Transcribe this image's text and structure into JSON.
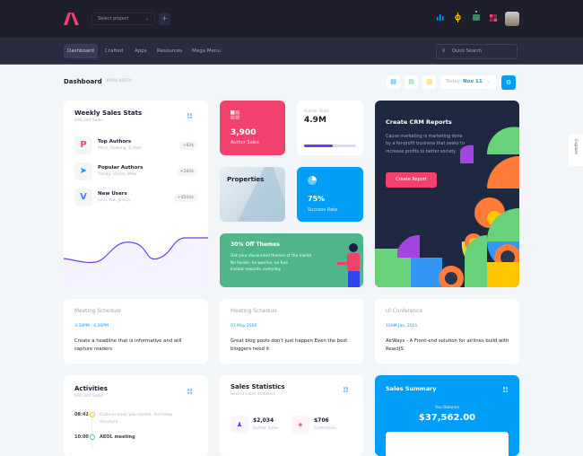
{
  "header": {
    "project_select": "Select project",
    "add": "+"
  },
  "nav": {
    "items": [
      "Dashboard",
      "Crafted",
      "Apps",
      "Resources",
      "Mega Menu"
    ],
    "search_placeholder": "Quick Search"
  },
  "toolbar": {
    "title": "Dashboard",
    "id": "#XRS-45670",
    "date_label": "Today:",
    "date_value": "Nov 11"
  },
  "weekly": {
    "title": "Weekly Sales Stats",
    "sub": "890,344 Sales",
    "items": [
      {
        "title": "Top Authors",
        "names": "Mark, Rowling, Esther",
        "badge": "+82$"
      },
      {
        "title": "Popular Authors",
        "names": "Randy, Steve, Mike",
        "badge": "+280$"
      },
      {
        "title": "New Users",
        "names": "John, Pat, Jimmy",
        "badge": "+4500$"
      }
    ]
  },
  "author_sales": {
    "value": "3,900",
    "label": "Author Sales"
  },
  "author_stats": {
    "label": "Author Stats",
    "value": "4.9M",
    "progress": 0.55
  },
  "properties": {
    "title": "Properties"
  },
  "success": {
    "value": "75%",
    "label": "Success Rate"
  },
  "themes": {
    "title": "30% Off Themes",
    "lines": [
      "Get your discounted themes of the month",
      "No hassle, no worries, no fuss",
      "Instant rewards, everyday"
    ]
  },
  "crm": {
    "title": "Create CRM Reports",
    "text": "Cause marketing is marketing done by a for-profit business that seeks to increase profits to better society",
    "button": "Create Report"
  },
  "explore": "Explore",
  "events": [
    {
      "title": "Meeting Schedule",
      "time": "3:30PM - 4:20PM",
      "text": "Create a headline that is informative and will capture readers"
    },
    {
      "title": "Meeting Schedule",
      "time": "03 May 2020",
      "text": "Great blog posts don't just happen Even the best bloggers need it"
    },
    {
      "title": "UI Conference",
      "time": "10AM Jan, 2021",
      "text": "AirWays - A Front-end solution for airlines build with ReactJS"
    }
  ],
  "activities": {
    "title": "Activities",
    "sub": "890,344 Sales",
    "items": [
      {
        "time": "08:42",
        "text": "Outlines keep you honest. And keep structure"
      },
      {
        "time": "10:00",
        "text": "AEOL meeting"
      }
    ]
  },
  "sales_stats": {
    "title": "Sales Statistics",
    "sub": "Recent sales statistics",
    "items": [
      {
        "value": "$2,034",
        "label": "Author Sales"
      },
      {
        "value": "$706",
        "label": "Commision"
      }
    ]
  },
  "summary": {
    "title": "Sales Summary",
    "balance_label": "You Balance",
    "balance": "$37,562.00"
  },
  "colors": {
    "accent": "#009ef7",
    "pink": "#f1416c",
    "green": "#50b68a",
    "dark": "#1e1e2d"
  }
}
